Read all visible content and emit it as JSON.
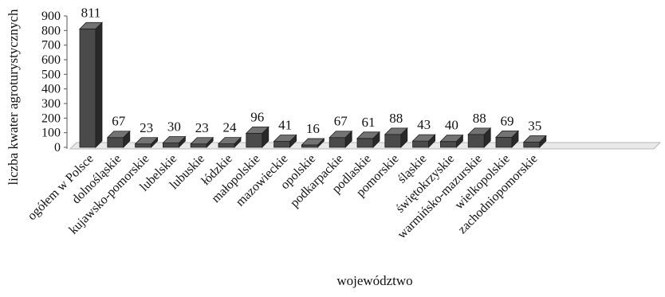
{
  "chart_data": {
    "type": "bar",
    "title": "",
    "xlabel": "województwo",
    "ylabel": "liczba kwater agroturystycznych",
    "ylim": [
      0,
      900
    ],
    "yticks": [
      0,
      100,
      200,
      300,
      400,
      500,
      600,
      700,
      800,
      900
    ],
    "grid": false,
    "legend": "none",
    "style": "3d-column",
    "bar_color": "#4a4a4a",
    "categories": [
      "ogółem w Polsce",
      "dolnośląskie",
      "kujawsko-pomorskie",
      "lubelskie",
      "lubuskie",
      "łódzkie",
      "małopolskie",
      "mazowieckie",
      "opolskie",
      "podkarpackie",
      "podlaskie",
      "pomorskie",
      "śląskie",
      "świętokrzyskie",
      "warmińsko-mazurskie",
      "wielkopolskie",
      "zachodniopomorskie"
    ],
    "values": [
      811,
      67,
      23,
      30,
      23,
      24,
      96,
      41,
      16,
      67,
      61,
      88,
      43,
      40,
      88,
      69,
      35
    ]
  }
}
